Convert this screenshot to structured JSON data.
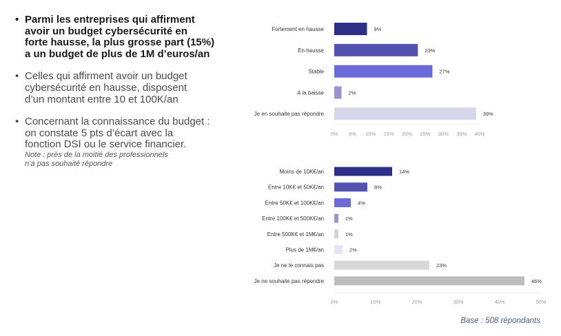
{
  "bullets": [
    {
      "lines": [
        "Parmi les entreprises qui affirment",
        "avoir un budget cybersécurité en",
        "forte hausse, la plus grosse part (15%)",
        "a un budget de plus de 1M d’euros/an"
      ],
      "bold": true
    },
    {
      "lines": [
        "Celles qui affirment avoir un budget",
        "cybersécurité en hausse, disposent",
        "d’un montant entre 10 et 100K/an"
      ],
      "bold": false
    },
    {
      "lines": [
        "Concernant la connaissance du budget :",
        "on constate 5 pts d’écart avec la",
        "fonction DSI ou le service financier."
      ],
      "note": [
        "Note : près de la moitié des professionnels",
        "n’a pas souhaité répondre"
      ],
      "bold": false
    }
  ],
  "bullet_symbol": "•",
  "base_note": "Base : 508 répondants",
  "chart_data": [
    {
      "type": "bar",
      "orientation": "horizontal",
      "categories": [
        "Fortement en hausse",
        "En hausse",
        "Stable",
        "A la baisse",
        "Je en souhaite pas répondre"
      ],
      "values": [
        9,
        23,
        27,
        2,
        39
      ],
      "data_labels": [
        "9%",
        "23%",
        "27%",
        "2%",
        "39%"
      ],
      "colors": [
        "#2e2f86",
        "#5352b0",
        "#6a6ad8",
        "#9a94cc",
        "#d6d6ea"
      ],
      "xlim": [
        0,
        40
      ],
      "xticks": [
        "0%",
        "5%",
        "10%",
        "15%",
        "20%",
        "25%",
        "30%",
        "35%",
        "40%"
      ],
      "grid": false
    },
    {
      "type": "bar",
      "orientation": "horizontal",
      "categories": [
        "Moins de 10K€/an",
        "Entre 10K€ et 50K€/an",
        "Entre 50K€ et 100K€/an",
        "Entre 100K€ et 500K€/an",
        "Entre 500K€ et 1M€/an",
        "Plus de 1M€/an",
        "Je ne le connais pas",
        "Je ne souhaite pas répondre"
      ],
      "values": [
        14,
        8,
        4,
        1,
        1,
        2,
        23,
        46
      ],
      "data_labels": [
        "14%",
        "8%",
        "4%",
        "1%",
        "1%",
        "2%",
        "23%",
        "46%"
      ],
      "colors": [
        "#2e2f86",
        "#5352b0",
        "#6a6ad8",
        "#9a94cc",
        "#d2d2e0",
        "#e6e5f8",
        "#d8d8d8",
        "#bdbdbd"
      ],
      "xlim": [
        0,
        50
      ],
      "xticks": [
        "0%",
        "10%",
        "20%",
        "30%",
        "40%",
        "50%"
      ],
      "grid": false
    }
  ]
}
